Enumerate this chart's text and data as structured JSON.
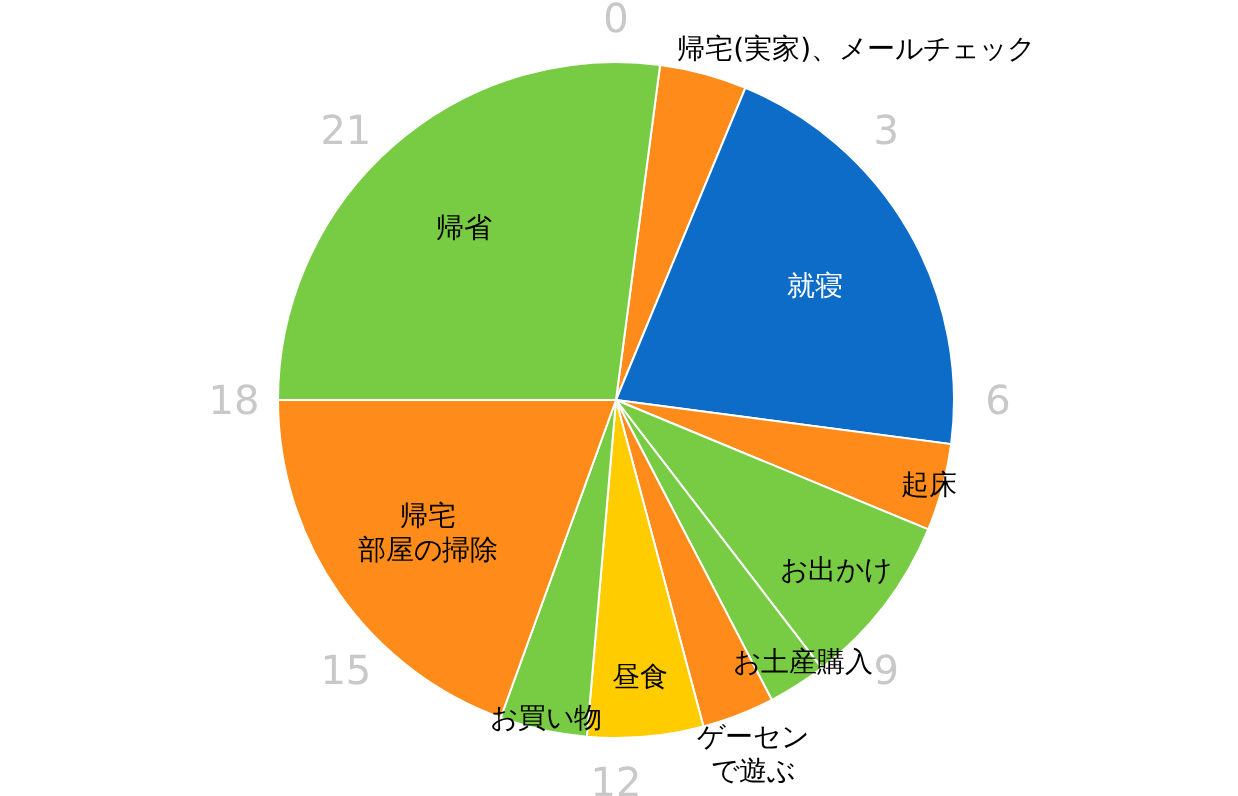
{
  "chart_data": {
    "type": "pie",
    "categories": [
      "帰宅(実家)、メールチェック",
      "就寝",
      "起床",
      "お出かけ",
      "お土産購入",
      "ゲーセンで遊ぶ",
      "昼食",
      "お買い物",
      "帰宅部屋の掃除",
      "帰省"
    ],
    "values": [
      4.17,
      20.83,
      4.17,
      8.33,
      2.79,
      3.46,
      5.54,
      4.17,
      19.46,
      27.08
    ],
    "colors": [
      "#ff8c1a",
      "#0c6cc8",
      "#ff8c1a",
      "#77cc44",
      "#77cc44",
      "#ff8c1a",
      "#ffcc00",
      "#77cc44",
      "#ff8c1a",
      "#77cc44"
    ],
    "annotations": [
      "0",
      "3",
      "6",
      "9",
      "12",
      "15",
      "18",
      "21"
    ]
  }
}
